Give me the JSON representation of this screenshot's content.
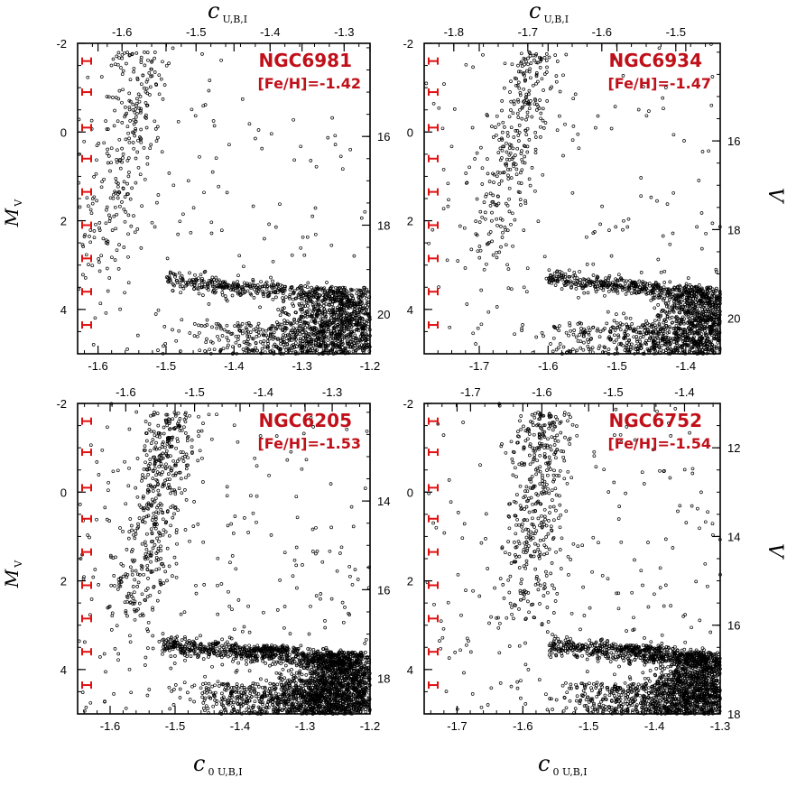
{
  "colors": {
    "text": "#000000",
    "errorbar": "#e01010",
    "label": "#c0101a",
    "frame": "#000000"
  },
  "axis_titles": {
    "top": {
      "main": "c",
      "sub": "U,B,I"
    },
    "bottom": {
      "main": "c",
      "sub": "0 U,B,I"
    },
    "left": {
      "main": "M",
      "sub": "V"
    },
    "right": {
      "main": "V"
    }
  },
  "chart_data": [
    {
      "type": "scatter",
      "cluster": "NGC6981",
      "feh": "[Fe/H]=-1.42",
      "xlim": [
        -1.63,
        -1.2
      ],
      "ylim": [
        5,
        -2
      ],
      "xticks": [
        "-1.6",
        "-1.5",
        "-1.4",
        "-1.3",
        "-1.2"
      ],
      "yticks": [
        "-2",
        "0",
        "2",
        "4"
      ],
      "top_xlim": [
        -1.66,
        -1.265
      ],
      "top_ticks": [
        "-1.6",
        "-1.5",
        "-1.4",
        "-1.3"
      ],
      "right_ylim": [
        13.9,
        20.9
      ],
      "right_ticks": [
        "16",
        "18",
        "20"
      ],
      "rgb": {
        "x": [
          [
            2.2,
            -1.59
          ],
          [
            1.0,
            -1.565
          ],
          [
            0,
            -1.55
          ],
          [
            -1.0,
            -1.54
          ],
          [
            -1.6,
            -1.535
          ]
        ]
      },
      "sgb": {
        "y": 3.35,
        "x0": -1.5,
        "x1": -1.24
      },
      "ms": {
        "x": [
          [
            3.5,
            -1.24
          ],
          [
            4.0,
            -1.285
          ],
          [
            4.6,
            -1.35
          ],
          [
            5.0,
            -1.39
          ]
        ]
      },
      "density": 1.0,
      "errorbars_y": [
        -1.6,
        -0.9,
        -0.1,
        0.6,
        1.35,
        2.1,
        2.85,
        3.6,
        4.35
      ]
    },
    {
      "type": "scatter",
      "cluster": "NGC6934",
      "feh": "[Fe/H]=-1.47",
      "xlim": [
        -1.78,
        -1.35
      ],
      "ylim": [
        5,
        -2
      ],
      "xticks": [
        "-1.7",
        "-1.6",
        "-1.5",
        "-1.4"
      ],
      "yticks": [
        "-2",
        "0",
        "2",
        "4"
      ],
      "top_xlim": [
        -1.84,
        -1.44
      ],
      "top_ticks": [
        "-1.8",
        "-1.7",
        "-1.6",
        "-1.5"
      ],
      "right_ylim": [
        13.8,
        20.8
      ],
      "right_ticks": [
        "16",
        "18",
        "20"
      ],
      "rgb": {
        "x": [
          [
            2.2,
            -1.68
          ],
          [
            1.0,
            -1.66
          ],
          [
            0,
            -1.645
          ],
          [
            -1.0,
            -1.63
          ],
          [
            -1.6,
            -1.62
          ]
        ]
      },
      "sgb": {
        "y": 3.3,
        "x0": -1.6,
        "x1": -1.37
      },
      "ms": {
        "x": [
          [
            3.5,
            -1.37
          ],
          [
            4.0,
            -1.41
          ],
          [
            4.6,
            -1.46
          ],
          [
            5.0,
            -1.5
          ]
        ]
      },
      "density": 1.1,
      "errorbars_y": [
        -1.6,
        -0.9,
        -0.1,
        0.6,
        1.35,
        2.1,
        2.85,
        3.6,
        4.35
      ]
    },
    {
      "type": "scatter",
      "cluster": "NGC6205",
      "feh": "[Fe/H]=-1.53",
      "xlim": [
        -1.65,
        -1.2
      ],
      "ylim": [
        5,
        -2
      ],
      "xticks": [
        "-1.6",
        "-1.5",
        "-1.4",
        "-1.3",
        "-1.2"
      ],
      "yticks": [
        "-2",
        "0",
        "2",
        "4"
      ],
      "top_xlim": [
        -1.67,
        -1.245
      ],
      "top_ticks": [
        "-1.6",
        "-1.5",
        "-1.4",
        "-1.3"
      ],
      "right_ylim": [
        11.8,
        18.8
      ],
      "right_ticks": [
        "14",
        "16",
        "18"
      ],
      "rgb": {
        "x": [
          [
            2.6,
            -1.56
          ],
          [
            1.5,
            -1.545
          ],
          [
            0.5,
            -1.53
          ],
          [
            -0.5,
            -1.52
          ],
          [
            -1.6,
            -1.505
          ]
        ]
      },
      "sgb": {
        "y": 3.45,
        "x0": -1.52,
        "x1": -1.24
      },
      "ms": {
        "x": [
          [
            3.6,
            -1.24
          ],
          [
            4.1,
            -1.27
          ],
          [
            4.6,
            -1.31
          ],
          [
            5.0,
            -1.35
          ]
        ]
      },
      "density": 1.7,
      "errorbars_y": [
        -1.6,
        -0.9,
        -0.1,
        0.6,
        1.35,
        2.1,
        2.85,
        3.6,
        4.35
      ]
    },
    {
      "type": "scatter",
      "cluster": "NGC6752",
      "feh": "[Fe/H]=-1.54",
      "xlim": [
        -1.75,
        -1.3
      ],
      "ylim": [
        5,
        -2
      ],
      "xticks": [
        "-1.7",
        "-1.6",
        "-1.5",
        "-1.4",
        "-1.3"
      ],
      "yticks": [
        "-2",
        "0",
        "2",
        "4"
      ],
      "top_xlim": [
        -1.765,
        -1.35
      ],
      "top_ticks": [
        "-1.7",
        "-1.6",
        "-1.5",
        "-1.4"
      ],
      "right_ylim": [
        11.0,
        18.0
      ],
      "right_ticks": [
        "12",
        "14",
        "16",
        "18"
      ],
      "rgb": {
        "x": [
          [
            2.6,
            -1.6
          ],
          [
            1.5,
            -1.59
          ],
          [
            0.5,
            -1.58
          ],
          [
            -0.5,
            -1.575
          ],
          [
            -1.6,
            -1.57
          ]
        ]
      },
      "sgb": {
        "y": 3.45,
        "x0": -1.56,
        "x1": -1.32
      },
      "ms": {
        "x": [
          [
            3.6,
            -1.32
          ],
          [
            4.1,
            -1.35
          ],
          [
            4.6,
            -1.39
          ],
          [
            5.0,
            -1.42
          ]
        ]
      },
      "density": 1.5,
      "errorbars_y": [
        -1.6,
        -0.9,
        -0.1,
        0.6,
        1.35,
        2.1,
        2.85,
        3.6,
        4.35
      ]
    }
  ]
}
